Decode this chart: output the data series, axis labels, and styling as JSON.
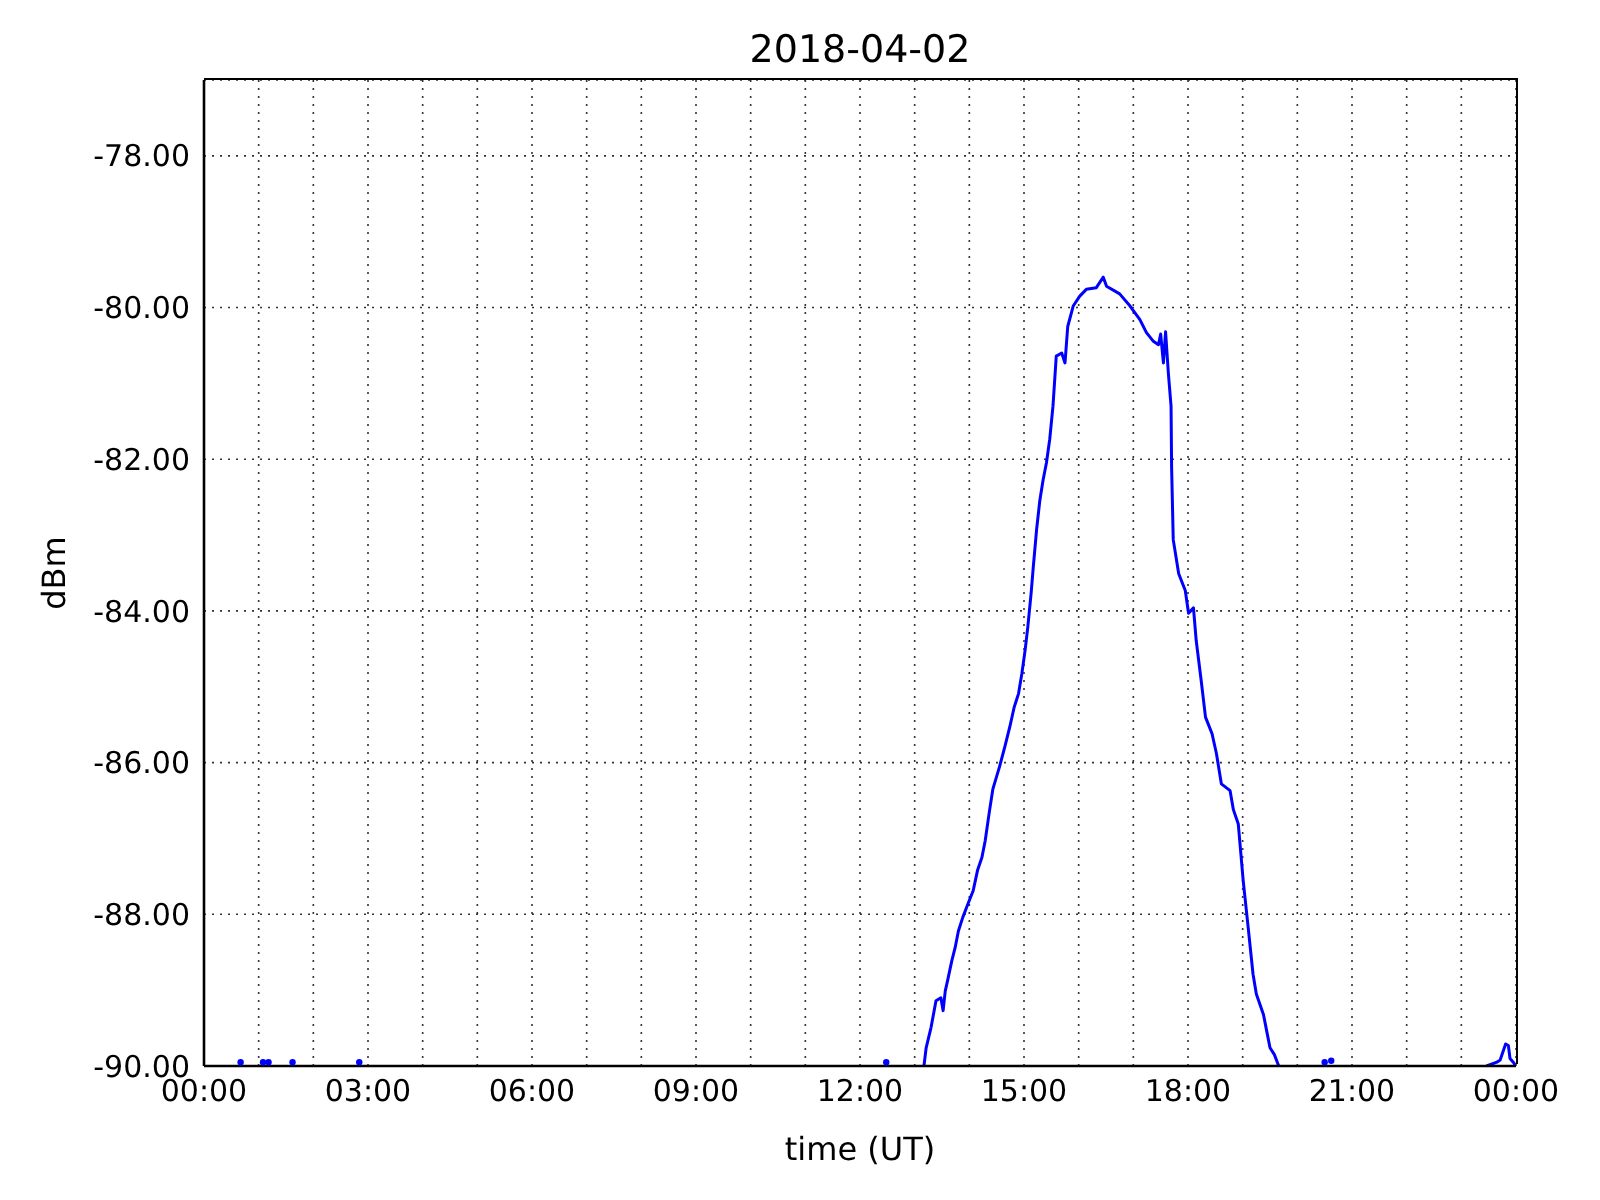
{
  "chart_data": {
    "type": "line",
    "title": "2018-04-02",
    "xlabel": "time (UT)",
    "ylabel": "dBm",
    "series": [
      {
        "color": "#0000ff",
        "line_style": "solid",
        "x": [
          13.17,
          13.21,
          13.3,
          13.39,
          13.48,
          13.52,
          13.56,
          13.6,
          13.68,
          13.74,
          13.8,
          13.88,
          13.97,
          14.07,
          14.15,
          14.23,
          14.29,
          14.37,
          14.43,
          14.55,
          14.65,
          14.74,
          14.82,
          14.9,
          14.96,
          15.02,
          15.07,
          15.13,
          15.17,
          15.23,
          15.29,
          15.35,
          15.41,
          15.47,
          15.53,
          15.59,
          15.69,
          15.75,
          15.8,
          15.9,
          16.02,
          16.14,
          16.32,
          16.45,
          16.51,
          16.75,
          16.94,
          17.12,
          17.24,
          17.36,
          17.46,
          17.5,
          17.55,
          17.59,
          17.64,
          17.69,
          17.7,
          17.73,
          17.83,
          17.95,
          18.01,
          18.1,
          18.15,
          18.24,
          18.32,
          18.44,
          18.52,
          18.61,
          18.77,
          18.83,
          18.92,
          19.01,
          19.1,
          19.19,
          19.25,
          19.38,
          19.44,
          19.5,
          19.58,
          19.66,
          22.0,
          23.46,
          23.65,
          23.71,
          23.81,
          23.86,
          23.89,
          23.95,
          24.0
        ],
        "values": [
          -90.0,
          -89.76,
          -89.49,
          -89.14,
          -89.1,
          -89.27,
          -89.01,
          -88.88,
          -88.61,
          -88.44,
          -88.22,
          -88.04,
          -87.87,
          -87.69,
          -87.42,
          -87.25,
          -87.03,
          -86.63,
          -86.35,
          -86.06,
          -85.79,
          -85.53,
          -85.27,
          -85.09,
          -84.83,
          -84.52,
          -84.21,
          -83.77,
          -83.42,
          -82.93,
          -82.54,
          -82.27,
          -82.05,
          -81.74,
          -81.3,
          -80.64,
          -80.6,
          -80.73,
          -80.25,
          -79.98,
          -79.85,
          -79.76,
          -79.74,
          -79.6,
          -79.72,
          -79.82,
          -79.98,
          -80.16,
          -80.33,
          -80.44,
          -80.49,
          -80.35,
          -80.73,
          -80.32,
          -80.86,
          -81.3,
          -82.1,
          -83.06,
          -83.51,
          -83.73,
          -84.03,
          -83.96,
          -84.39,
          -84.91,
          -85.4,
          -85.62,
          -85.88,
          -86.28,
          -86.37,
          -86.62,
          -86.81,
          -87.56,
          -88.17,
          -88.79,
          -89.05,
          -89.32,
          -89.54,
          -89.76,
          -89.85,
          -90.0,
          null,
          -90.0,
          -89.95,
          -89.92,
          -89.71,
          -89.73,
          -89.9,
          -89.95,
          -90.0
        ]
      },
      {
        "type": "scatter",
        "color": "#0000ff",
        "x": [
          0.67,
          1.08,
          1.18,
          1.62,
          2.84,
          12.48,
          20.5,
          20.62
        ],
        "values": [
          -89.95,
          -89.95,
          -89.95,
          -89.95,
          -89.95,
          -89.95,
          -89.95,
          -89.93
        ]
      }
    ],
    "xlim": [
      0,
      24
    ],
    "xticks": [
      {
        "value": 0,
        "label": "00:00"
      },
      {
        "value": 1,
        "label": null
      },
      {
        "value": 2,
        "label": null
      },
      {
        "value": 3,
        "label": "03:00"
      },
      {
        "value": 4,
        "label": null
      },
      {
        "value": 5,
        "label": null
      },
      {
        "value": 6,
        "label": "06:00"
      },
      {
        "value": 7,
        "label": null
      },
      {
        "value": 8,
        "label": null
      },
      {
        "value": 9,
        "label": "09:00"
      },
      {
        "value": 10,
        "label": null
      },
      {
        "value": 11,
        "label": null
      },
      {
        "value": 12,
        "label": "12:00"
      },
      {
        "value": 13,
        "label": null
      },
      {
        "value": 14,
        "label": null
      },
      {
        "value": 15,
        "label": "15:00"
      },
      {
        "value": 16,
        "label": null
      },
      {
        "value": 17,
        "label": null
      },
      {
        "value": 18,
        "label": "18:00"
      },
      {
        "value": 19,
        "label": null
      },
      {
        "value": 20,
        "label": null
      },
      {
        "value": 21,
        "label": "21:00"
      },
      {
        "value": 22,
        "label": null
      },
      {
        "value": 23,
        "label": null
      },
      {
        "value": 24,
        "label": "00:00"
      }
    ],
    "ylim": [
      -90,
      -77
    ],
    "yticks": [
      {
        "value": -90,
        "label": "-90.00"
      },
      {
        "value": -88,
        "label": "-88.00"
      },
      {
        "value": -86,
        "label": "-86.00"
      },
      {
        "value": -84,
        "label": "-84.00"
      },
      {
        "value": -82,
        "label": "-82.00"
      },
      {
        "value": -80,
        "label": "-80.00"
      },
      {
        "value": -78,
        "label": "-78.00"
      }
    ],
    "grid": true
  }
}
